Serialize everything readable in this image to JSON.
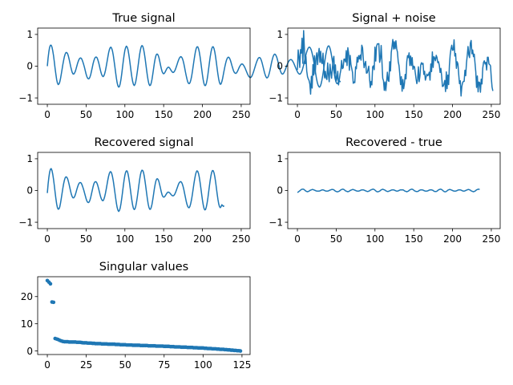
{
  "chart_data": [
    {
      "type": "line",
      "title": "True signal",
      "xlabel": "",
      "ylabel": "",
      "xlim": [
        -12.45,
        261.45
      ],
      "ylim": [
        -1.2,
        1.2
      ],
      "xticks": [
        0,
        50,
        100,
        150,
        200,
        250
      ],
      "yticks": [
        -1,
        0,
        1
      ],
      "color": "#1f77b4",
      "x_start": 0,
      "x_step": 1,
      "y": [
        0.0,
        0.26,
        0.46,
        0.6,
        0.66,
        0.66,
        0.6,
        0.48,
        0.33,
        0.14,
        -0.07,
        -0.25,
        -0.42,
        -0.53,
        -0.58,
        -0.56,
        -0.5,
        -0.39,
        -0.25,
        -0.1,
        0.05,
        0.18,
        0.3,
        0.38,
        0.43,
        0.43,
        0.4,
        0.33,
        0.23,
        0.12,
        0.0,
        -0.1,
        -0.19,
        -0.24,
        -0.25,
        -0.22,
        -0.17,
        -0.09,
        0.0,
        0.09,
        0.16,
        0.22,
        0.25,
        0.26,
        0.24,
        0.19,
        0.12,
        0.04,
        -0.05,
        -0.15,
        -0.25,
        -0.33,
        -0.38,
        -0.4,
        -0.39,
        -0.34,
        -0.26,
        -0.15,
        -0.04,
        0.08,
        0.17,
        0.24,
        0.28,
        0.29,
        0.27,
        0.21,
        0.13,
        0.03,
        -0.08,
        -0.18,
        -0.26,
        -0.31,
        -0.33,
        -0.3,
        -0.23,
        -0.13,
        0.0,
        0.14,
        0.28,
        0.42,
        0.52,
        0.58,
        0.6,
        0.56,
        0.48,
        0.35,
        0.18,
        0.0,
        -0.19,
        -0.37,
        -0.52,
        -0.62,
        -0.66,
        -0.64,
        -0.55,
        -0.41,
        -0.23,
        -0.03,
        0.17,
        0.35,
        0.5,
        0.59,
        0.63,
        0.6,
        0.52,
        0.38,
        0.21,
        0.02,
        -0.17,
        -0.34,
        -0.48,
        -0.57,
        -0.61,
        -0.58,
        -0.49,
        -0.35,
        -0.18,
        0.0,
        0.19,
        0.37,
        0.51,
        0.61,
        0.65,
        0.63,
        0.55,
        0.42,
        0.26,
        0.07,
        -0.12,
        -0.3,
        -0.45,
        -0.56,
        -0.61,
        -0.6,
        -0.53,
        -0.41,
        -0.25,
        -0.08,
        0.09,
        0.23,
        0.33,
        0.38,
        0.38,
        0.34,
        0.26,
        0.15,
        0.03,
        -0.08,
        -0.17,
        -0.22,
        -0.24,
        -0.22,
        -0.18,
        -0.13,
        -0.08,
        -0.05,
        -0.03,
        -0.04,
        -0.07,
        -0.11,
        -0.15,
        -0.18,
        -0.2,
        -0.19,
        -0.16,
        -0.11,
        -0.04,
        0.03,
        0.11,
        0.18,
        0.24,
        0.28,
        0.3,
        0.29,
        0.25,
        0.18,
        0.08,
        -0.04,
        -0.17,
        -0.29,
        -0.4,
        -0.49,
        -0.54,
        -0.55,
        -0.52,
        -0.44,
        -0.33,
        -0.18,
        -0.01,
        0.16,
        0.32,
        0.46,
        0.56,
        0.61,
        0.61,
        0.55,
        0.44,
        0.29,
        0.11,
        -0.08,
        -0.27,
        -0.43,
        -0.55,
        -0.61,
        -0.61,
        -0.55,
        -0.43,
        -0.27,
        -0.08,
        0.11,
        0.29,
        0.44,
        0.55,
        0.61,
        0.61,
        0.55,
        0.44,
        0.29,
        0.11,
        -0.08,
        -0.26,
        -0.41,
        -0.52,
        -0.57,
        -0.56,
        -0.49,
        -0.39,
        -0.26,
        -0.13,
        -0.01,
        0.1,
        0.19,
        0.25,
        0.28,
        0.28,
        0.25,
        0.19,
        0.11,
        0.02,
        -0.06,
        -0.14,
        -0.19,
        -0.22,
        -0.23,
        -0.21,
        -0.17,
        -0.12,
        -0.06,
        -0.01,
        0.03,
        0.06,
        0.07,
        0.06,
        0.03,
        -0.01,
        -0.06,
        -0.12,
        -0.18,
        -0.24,
        -0.29,
        -0.33,
        -0.35,
        -0.36,
        -0.34,
        -0.3,
        -0.24,
        -0.17,
        -0.09,
        -0.01,
        0.07,
        0.14,
        0.2,
        0.25,
        0.27,
        0.27,
        0.24,
        0.18,
        0.1,
        0.0,
        -0.1,
        -0.2,
        -0.28,
        -0.34,
        -0.37,
        -0.36,
        -0.32,
        -0.24,
        -0.14,
        -0.02,
        0.1,
        0.2,
        0.29,
        0.35,
        0.38,
        0.37,
        0.33,
        0.27,
        0.18,
        0.08,
        -0.02,
        -0.11,
        -0.18,
        -0.23,
        -0.25,
        -0.24,
        -0.21,
        -0.16,
        -0.1,
        -0.03,
        0.03,
        0.09,
        0.14,
        0.18,
        0.2,
        0.21,
        0.2,
        0.17,
        0.13,
        0.08,
        0.02,
        -0.04,
        -0.1,
        -0.15,
        -0.2,
        -0.23,
        -0.25,
        -0.25,
        -0.22,
        -0.17,
        -0.1,
        -0.01,
        0.09,
        0.2,
        0.31,
        0.41,
        0.49,
        0.55,
        0.59,
        0.6,
        0.58,
        0.53,
        0.45,
        0.35,
        0.22,
        0.08,
        -0.08,
        -0.23,
        -0.38,
        -0.5,
        -0.59,
        -0.64,
        -0.66,
        -0.63,
        -0.56,
        -0.45,
        -0.31,
        -0.15,
        0.02,
        0.19,
        0.35,
        0.48,
        0.58,
        0.63,
        0.64,
        0.6,
        0.52,
        0.4,
        0.25,
        0.09,
        -0.08,
        -0.24,
        -0.38,
        -0.48,
        -0.54,
        -0.55,
        -0.52,
        -0.46,
        -0.47,
        -0.5
      ]
    },
    {
      "type": "line",
      "title": "Signal + noise",
      "xlabel": "",
      "ylabel": "",
      "xlim": [
        -12.45,
        261.45
      ],
      "ylim": [
        -1.2,
        1.2
      ],
      "xticks": [
        0,
        50,
        100,
        150,
        200,
        250
      ],
      "yticks": [
        -1,
        0,
        1
      ],
      "color": "#1f77b4",
      "x_start": 0,
      "x_step": 1,
      "y": [
        -0.12,
        0.51,
        0.31,
        -0.04,
        0.52,
        0.41,
        0.88,
        0.09,
        1.12,
        0.55,
        0.08,
        0.31,
        -0.15,
        -0.33,
        -0.4,
        -0.45,
        -0.56,
        -0.88,
        -0.32,
        -0.69,
        0.05,
        -0.28,
        0.33,
        -0.24,
        0.25,
        0.42,
        0.05,
        0.38,
        0.56,
        0.12,
        0.47,
        0.12,
        0.08,
        0.41,
        -0.03,
        -0.37,
        -0.16,
        -0.37,
        -0.42,
        0.1,
        -0.27,
        -0.49,
        0.06,
        -0.19,
        -0.38,
        -0.08,
        0.21,
        0.31,
        -0.22,
        0.04,
        -0.47,
        -0.38,
        -0.16,
        -0.59,
        -0.43,
        -0.25,
        -0.12,
        0.18,
        -0.08,
        -0.05,
        0.22,
        0.22,
        0.13,
        0.49,
        0.02,
        0.58,
        0.41,
        -0.13,
        0.34,
        0.06,
        -0.07,
        -0.19,
        -0.54,
        -0.5,
        -0.52,
        -0.02,
        -0.08,
        0.28,
        0.13,
        0.33,
        0.23,
        0.35,
        0.19,
        0.66,
        0.58,
        0.22,
        -0.05,
        0.07,
        0.15,
        -0.22,
        -0.21,
        -0.11,
        0.0,
        -0.39,
        -0.67,
        -0.48,
        -0.59,
        -0.02,
        0.01,
        -0.11,
        0.6,
        0.16,
        0.62,
        0.7,
        0.7,
        0.71,
        0.12,
        0.24,
        0.65,
        0.14,
        -0.38,
        -0.46,
        -0.76,
        -0.5,
        -0.77,
        -0.49,
        -0.19,
        -0.45,
        -0.48,
        0.14,
        -0.15,
        0.43,
        0.62,
        0.84,
        0.54,
        0.77,
        0.55,
        0.8,
        0.55,
        0.44,
        0.14,
        0.02,
        -0.25,
        -0.58,
        -0.33,
        -0.79,
        -0.42,
        -0.71,
        -0.55,
        -0.26,
        -0.4,
        0.14,
        0.33,
        0.27,
        0.42,
        0.02,
        0.32,
        0.02,
        0.27,
        -0.1,
        0.0,
        -0.02,
        -0.21,
        -0.4,
        -0.55,
        -0.42,
        -0.02,
        -0.49,
        -0.31,
        0.04,
        0.11,
        0.06,
        0.09,
        -0.26,
        -0.16,
        -0.44,
        -0.34,
        -0.25,
        -0.3,
        -0.27,
        -0.19,
        -0.44,
        0.07,
        -0.17,
        0.45,
        -0.04,
        0.3,
        0.26,
        0.17,
        0.34,
        0.27,
        0.11,
        0.14,
        0.02,
        -0.2,
        -0.07,
        -0.31,
        -0.64,
        -0.63,
        -0.56,
        -0.45,
        -0.8,
        -0.18,
        -0.71,
        -0.28,
        -0.58,
        0.03,
        0.36,
        0.54,
        0.66,
        0.5,
        0.51,
        0.83,
        0.32,
        0.4,
        -0.07,
        0.14,
        0.07,
        -0.26,
        -0.55,
        -0.46,
        -0.94,
        -0.64,
        -0.52,
        -0.48,
        -0.48,
        -0.13,
        -0.3,
        0.1,
        0.34,
        0.62,
        0.36,
        0.27,
        0.73,
        0.81,
        0.39,
        0.51,
        0.3,
        0.38,
        0.1,
        -0.18,
        -0.67,
        -0.31,
        -0.81,
        -0.5,
        -0.52,
        -0.82,
        -0.41,
        -0.56,
        -0.06,
        0.12,
        0.17,
        0.07,
        0.12,
        -0.12,
        0.28,
        0.28,
        0.07,
        0.05,
        0.01,
        -0.37,
        -0.66,
        -0.78
      ]
    },
    {
      "type": "line",
      "title": "Recovered signal",
      "xlabel": "",
      "ylabel": "",
      "xlim": [
        -12.45,
        261.45
      ],
      "ylim": [
        -1.2,
        1.2
      ],
      "xticks": [
        0,
        50,
        100,
        150,
        200,
        250
      ],
      "yticks": [
        -1,
        0,
        1
      ],
      "color": "#1f77b4",
      "x_start": 0,
      "x_step": 1,
      "y": [
        -0.08,
        0.2,
        0.42,
        0.58,
        0.67,
        0.69,
        0.63,
        0.51,
        0.35,
        0.16,
        -0.05,
        -0.25,
        -0.42,
        -0.54,
        -0.59,
        -0.58,
        -0.52,
        -0.4,
        -0.25,
        -0.09,
        0.07,
        0.21,
        0.32,
        0.4,
        0.43,
        0.42,
        0.38,
        0.3,
        0.2,
        0.09,
        -0.02,
        -0.12,
        -0.19,
        -0.23,
        -0.23,
        -0.2,
        -0.14,
        -0.06,
        0.03,
        0.11,
        0.18,
        0.23,
        0.25,
        0.25,
        0.22,
        0.16,
        0.09,
        0.01,
        -0.08,
        -0.17,
        -0.26,
        -0.33,
        -0.37,
        -0.38,
        -0.36,
        -0.3,
        -0.21,
        -0.1,
        0.01,
        0.12,
        0.21,
        0.26,
        0.28,
        0.27,
        0.23,
        0.16,
        0.07,
        -0.03,
        -0.13,
        -0.22,
        -0.28,
        -0.32,
        -0.32,
        -0.27,
        -0.19,
        -0.08,
        0.05,
        0.19,
        0.33,
        0.45,
        0.54,
        0.59,
        0.59,
        0.54,
        0.44,
        0.31,
        0.14,
        -0.04,
        -0.22,
        -0.39,
        -0.53,
        -0.62,
        -0.66,
        -0.63,
        -0.55,
        -0.41,
        -0.24,
        -0.05,
        0.15,
        0.33,
        0.48,
        0.58,
        0.62,
        0.61,
        0.53,
        0.4,
        0.24,
        0.05,
        -0.14,
        -0.31,
        -0.46,
        -0.56,
        -0.6,
        -0.58,
        -0.5,
        -0.37,
        -0.21,
        -0.03,
        0.16,
        0.34,
        0.49,
        0.59,
        0.64,
        0.63,
        0.57,
        0.45,
        0.29,
        0.11,
        -0.08,
        -0.26,
        -0.42,
        -0.53,
        -0.59,
        -0.59,
        -0.53,
        -0.43,
        -0.28,
        -0.12,
        0.05,
        0.19,
        0.3,
        0.36,
        0.37,
        0.34,
        0.27,
        0.17,
        0.06,
        -0.05,
        -0.14,
        -0.19,
        -0.21,
        -0.2,
        -0.17,
        -0.13,
        -0.09,
        -0.06,
        -0.05,
        -0.06,
        -0.08,
        -0.11,
        -0.14,
        -0.16,
        -0.17,
        -0.16,
        -0.13,
        -0.08,
        -0.02,
        0.05,
        0.12,
        0.19,
        0.24,
        0.27,
        0.28,
        0.26,
        0.21,
        0.13,
        0.03,
        -0.09,
        -0.21,
        -0.33,
        -0.43,
        -0.5,
        -0.54,
        -0.54,
        -0.49,
        -0.4,
        -0.28,
        -0.13,
        0.04,
        0.21,
        0.36,
        0.49,
        0.58,
        0.62,
        0.6,
        0.53,
        0.41,
        0.25,
        0.07,
        -0.12,
        -0.3,
        -0.45,
        -0.56,
        -0.61,
        -0.6,
        -0.52,
        -0.4,
        -0.24,
        -0.05,
        0.14,
        0.32,
        0.47,
        0.58,
        0.63,
        0.62,
        0.55,
        0.43,
        0.27,
        0.08,
        -0.11,
        -0.28,
        -0.42,
        -0.51,
        -0.54,
        -0.51,
        -0.45,
        -0.47,
        -0.5,
        -0.48
      ]
    },
    {
      "type": "line",
      "title": "Recovered - true",
      "xlabel": "",
      "ylabel": "",
      "xlim": [
        -12.45,
        261.45
      ],
      "ylim": [
        -1.2,
        1.2
      ],
      "xticks": [
        0,
        50,
        100,
        150,
        200,
        250
      ],
      "yticks": [
        -1,
        0,
        1
      ],
      "color": "#1f77b4",
      "x_start": 0,
      "x_step": 1,
      "y": [
        -0.06,
        -0.05,
        -0.03,
        -0.01,
        0.01,
        0.03,
        0.04,
        0.04,
        0.04,
        0.02,
        0.0,
        -0.02,
        -0.03,
        -0.04,
        -0.03,
        -0.02,
        0.0,
        0.01,
        0.02,
        0.03,
        0.03,
        0.02,
        0.01,
        0.0,
        -0.01,
        -0.02,
        -0.02,
        -0.02,
        -0.02,
        -0.01,
        0.0,
        0.01,
        0.02,
        0.02,
        0.01,
        0.0,
        -0.01,
        -0.02,
        -0.02,
        -0.02,
        -0.01,
        0.0,
        0.01,
        0.02,
        0.03,
        0.03,
        0.03,
        0.02,
        0.0,
        -0.02,
        -0.03,
        -0.04,
        -0.04,
        -0.03,
        -0.02,
        0.0,
        0.02,
        0.03,
        0.04,
        0.04,
        0.03,
        0.01,
        -0.01,
        -0.02,
        -0.03,
        -0.04,
        -0.03,
        -0.02,
        0.0,
        0.01,
        0.02,
        0.03,
        0.03,
        0.02,
        0.01,
        0.0,
        -0.01,
        -0.02,
        -0.02,
        -0.02,
        -0.01,
        0.0,
        0.01,
        0.02,
        0.02,
        0.02,
        0.01,
        0.0,
        -0.01,
        -0.02,
        -0.03,
        -0.03,
        -0.02,
        -0.01,
        0.01,
        0.02,
        0.03,
        0.04,
        0.04,
        0.03,
        0.01,
        -0.01,
        -0.03,
        -0.04,
        -0.04,
        -0.03,
        -0.02,
        0.0,
        0.02,
        0.03,
        0.04,
        0.03,
        0.02,
        0.01,
        -0.01,
        -0.02,
        -0.03,
        -0.03,
        -0.02,
        -0.01,
        0.0,
        0.01,
        0.02,
        0.02,
        0.02,
        0.01,
        0.0,
        -0.01,
        -0.02,
        -0.02,
        -0.01,
        0.0,
        0.01,
        0.02,
        0.02,
        0.02,
        0.02,
        0.01,
        -0.01,
        -0.02,
        -0.03,
        -0.04,
        -0.03,
        -0.02,
        0.0,
        0.02,
        0.03,
        0.04,
        0.04,
        0.03,
        0.01,
        -0.01,
        -0.02,
        -0.03,
        -0.03,
        -0.03,
        -0.02,
        0.0,
        0.01,
        0.02,
        0.02,
        0.02,
        0.01,
        0.0,
        -0.01,
        -0.02,
        -0.02,
        -0.02,
        -0.01,
        0.0,
        0.01,
        0.02,
        0.02,
        0.02,
        0.01,
        0.0,
        -0.02,
        -0.03,
        -0.03,
        -0.03,
        -0.02,
        0.0,
        0.02,
        0.03,
        0.04,
        0.04,
        0.03,
        0.01,
        -0.01,
        -0.03,
        -0.04,
        -0.04,
        -0.03,
        -0.01,
        0.01,
        0.02,
        0.03,
        0.03,
        0.02,
        0.01,
        0.0,
        -0.01,
        -0.02,
        -0.02,
        -0.02,
        -0.01,
        0.0,
        0.01,
        0.02,
        0.02,
        0.02,
        0.01,
        0.0,
        -0.01,
        -0.02,
        -0.02,
        -0.01,
        0.0,
        0.01,
        0.02,
        0.03,
        0.03,
        0.02,
        0.01,
        -0.01,
        -0.02,
        -0.03,
        -0.04,
        -0.03,
        -0.02,
        0.0,
        0.02,
        0.03,
        0.04,
        0.04,
        0.03
      ]
    },
    {
      "type": "scatter",
      "title": "Singular values",
      "xlabel": "",
      "ylabel": "",
      "xlim": [
        -6.2,
        130.2
      ],
      "ylim": [
        -1.3,
        27.3
      ],
      "xticks": [
        0,
        25,
        50,
        75,
        100,
        125
      ],
      "yticks": [
        0,
        10,
        20
      ],
      "color": "#1f77b4",
      "x_start": 0,
      "x_step": 1,
      "y": [
        25.9,
        25.3,
        24.7,
        18.0,
        17.9,
        4.6,
        4.4,
        4.2,
        3.9,
        3.7,
        3.5,
        3.4,
        3.4,
        3.4,
        3.3,
        3.3,
        3.3,
        3.3,
        3.3,
        3.2,
        3.2,
        3.2,
        3.1,
        3.0,
        3.0,
        3.0,
        2.9,
        2.9,
        2.9,
        2.8,
        2.8,
        2.7,
        2.7,
        2.7,
        2.7,
        2.6,
        2.6,
        2.6,
        2.6,
        2.5,
        2.5,
        2.5,
        2.5,
        2.5,
        2.4,
        2.4,
        2.4,
        2.3,
        2.3,
        2.3,
        2.3,
        2.2,
        2.2,
        2.2,
        2.2,
        2.1,
        2.1,
        2.1,
        2.1,
        2.1,
        2.0,
        2.0,
        2.0,
        2.0,
        2.0,
        1.9,
        1.9,
        1.9,
        1.9,
        1.9,
        1.8,
        1.8,
        1.8,
        1.8,
        1.8,
        1.7,
        1.7,
        1.7,
        1.7,
        1.6,
        1.6,
        1.6,
        1.5,
        1.5,
        1.5,
        1.5,
        1.4,
        1.4,
        1.4,
        1.4,
        1.3,
        1.3,
        1.3,
        1.3,
        1.2,
        1.2,
        1.2,
        1.1,
        1.1,
        1.1,
        1.1,
        1.0,
        1.0,
        0.9,
        0.9,
        0.9,
        0.8,
        0.8,
        0.8,
        0.7,
        0.7,
        0.6,
        0.6,
        0.6,
        0.5,
        0.5,
        0.4,
        0.4,
        0.3,
        0.3,
        0.2,
        0.2,
        0.1,
        0.1,
        0.0
      ]
    }
  ]
}
